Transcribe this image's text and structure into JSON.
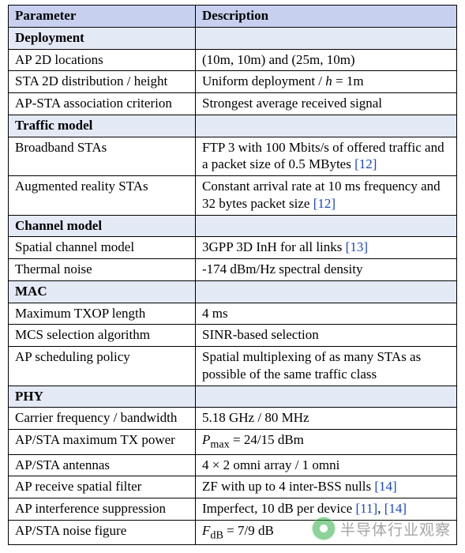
{
  "table": {
    "header_bg": "#c7d1ef",
    "section_bg": "#e4e9f6",
    "border_color": "#000000",
    "font_family": "Times New Roman",
    "base_font_size_pt": 12,
    "ref_color": "#1846c8",
    "columns": {
      "param_label": "Parameter",
      "desc_label": "Description"
    },
    "sections": [
      {
        "title": "Deployment",
        "rows": [
          {
            "param": "AP 2D locations",
            "desc_html": "(10m, 10m) and (25m, 10m)"
          },
          {
            "param": "STA 2D distribution / height",
            "desc_html": "Uniform deployment / <i>h</i> = 1m"
          },
          {
            "param": "AP-STA association criterion",
            "desc_html": "Strongest average received signal"
          }
        ]
      },
      {
        "title": "Traffic model",
        "rows": [
          {
            "param": "Broadband STAs",
            "desc_html": "FTP 3 with 100 Mbits/s of offered traffic and a packet size of 0.5 MBytes <span class=\"ref\">[12]</span>"
          },
          {
            "param": "Augmented reality STAs",
            "desc_html": "Constant arrival rate at 10 ms frequency and 32 bytes packet size <span class=\"ref\">[12]</span>"
          }
        ]
      },
      {
        "title": "Channel model",
        "rows": [
          {
            "param": "Spatial channel model",
            "desc_html": "3GPP 3D InH for all links <span class=\"ref\">[13]</span>"
          },
          {
            "param": "Thermal noise",
            "desc_html": "-174 dBm/Hz spectral density"
          }
        ]
      },
      {
        "title": "MAC",
        "rows": [
          {
            "param": "Maximum TXOP length",
            "desc_html": "4 ms"
          },
          {
            "param": "MCS selection algorithm",
            "desc_html": "SINR-based selection"
          },
          {
            "param": "AP scheduling policy",
            "desc_html": "Spatial multiplexing of as many STAs as possible of the same traffic class"
          }
        ]
      },
      {
        "title": "PHY",
        "rows": [
          {
            "param": "Carrier frequency / bandwidth",
            "desc_html": "5.18 GHz / 80 MHz"
          },
          {
            "param": "AP/STA maximum TX power",
            "desc_html": "<i>P</i><sub>max</sub> = 24/15 dBm"
          },
          {
            "param": "AP/STA antennas",
            "desc_html": "4 × 2 omni array / 1 omni"
          },
          {
            "param": "AP receive spatial filter",
            "desc_html": "ZF with up to 4 inter-BSS nulls <span class=\"ref\">[14]</span>"
          },
          {
            "param": "AP interference suppression",
            "desc_html": "Imperfect, 10 dB per device <span class=\"ref\">[11]</span>, <span class=\"ref\">[14]</span>"
          },
          {
            "param": "AP/STA noise figure",
            "desc_html": "<i>F</i><sub>dB</sub> = 7/9 dB"
          }
        ]
      }
    ]
  },
  "watermark": {
    "text": "半导体行业观察",
    "text_color": "#5a5a5a",
    "logo_color": "#2fae47",
    "opacity": 0.55
  }
}
